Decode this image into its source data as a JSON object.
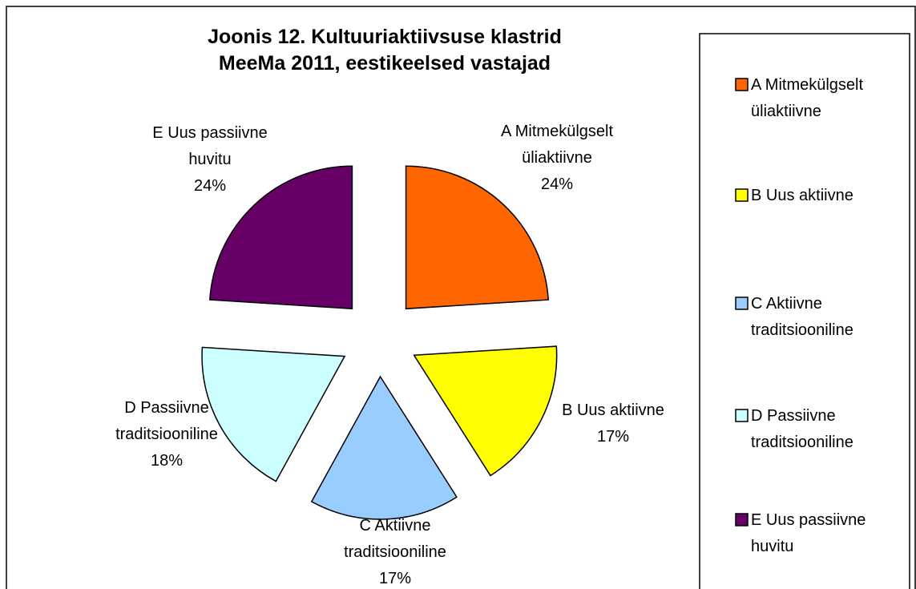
{
  "chart_data": {
    "type": "pie",
    "title": "Joonis 12. Kultuuriaktiivsuse klastrid MeeMa 2011, eestikeelsed vastajad",
    "categories": [
      "A Mitmekülgselt üliaktiivne",
      "B Uus aktiivne",
      "C Aktiivne traditsiooniline",
      "D Passiivne traditsiooniline",
      "E Uus passiivne huvitu"
    ],
    "values": [
      24,
      17,
      17,
      18,
      24
    ],
    "value_labels": [
      "24%",
      "17%",
      "17%",
      "18%",
      "24%"
    ],
    "colors": [
      "#FF6600",
      "#FFFF00",
      "#99CCFF",
      "#CCFFFF",
      "#660066"
    ],
    "legend": "right"
  }
}
